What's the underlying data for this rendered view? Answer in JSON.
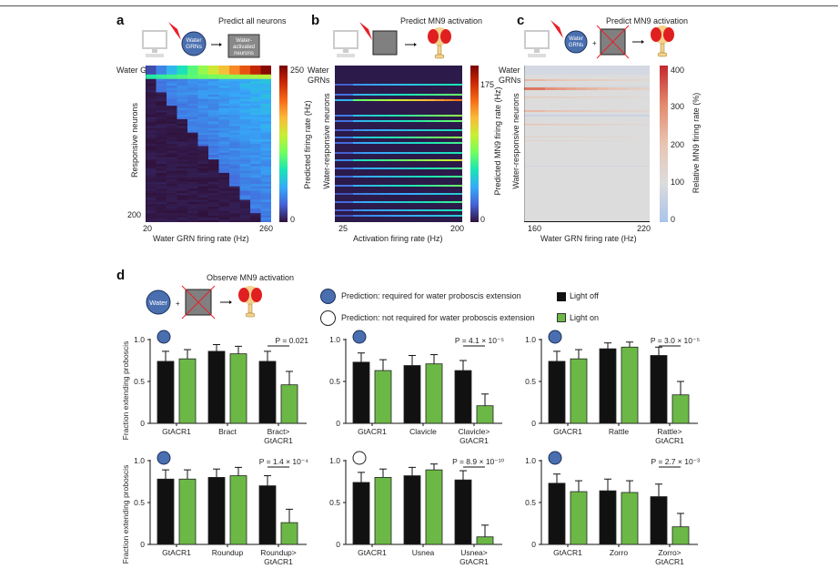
{
  "panels": {
    "a": {
      "letter": "a",
      "schematic_title": "Predict all neurons",
      "circle_label_1": "Water",
      "circle_label_2": "GRNs",
      "box_label_1": "Water-",
      "box_label_2": "activated",
      "box_label_3": "neurons"
    },
    "b": {
      "letter": "b",
      "schematic_title": "Predict MN9 activation"
    },
    "c": {
      "letter": "c",
      "schematic_title": "Predict MN9 activation",
      "circle_label_1": "Water",
      "circle_label_2": "GRNs",
      "plus": "+"
    },
    "d": {
      "letter": "d",
      "schematic_title": "Observe MN9 activation",
      "circle_label": "Water",
      "plus": "+",
      "legend": {
        "required": "Prediction: required for water proboscis extension",
        "not_required": "Prediction: not required for water proboscis extension",
        "light_off": "Light off",
        "light_on": "Light on"
      }
    }
  },
  "colors": {
    "prediction_blue": "#4a6fb0",
    "light_off": "#111111",
    "light_on": "#6cb846",
    "laser_red": "#e8202a",
    "fly_red": "#e02020",
    "fly_body": "#f2d28c"
  },
  "chart_data": [
    {
      "id": "a",
      "type": "heatmap",
      "title": "",
      "xlabel": "Water GRN firing rate (Hz)",
      "ylabel": "Responsive neurons",
      "row_group_label": "Water GRNs",
      "x_ticks": [
        "20",
        "260"
      ],
      "y_ticks": [
        "200"
      ],
      "xlim": [
        20,
        260
      ],
      "colorbar": {
        "label": "Predicted firing rate (Hz)",
        "ticks": [
          "0",
          "250"
        ],
        "range": [
          0,
          250
        ],
        "colormap": "turbo"
      }
    },
    {
      "id": "b",
      "type": "heatmap",
      "xlabel": "Activation firing rate (Hz)",
      "ylabel": "Water-responsive neurons",
      "row_group_label": "Water GRNs",
      "x_ticks": [
        "25",
        "200"
      ],
      "xlim": [
        25,
        200
      ],
      "colorbar": {
        "label": "Predicted MN9 firing rate (Hz)",
        "ticks": [
          "0",
          "175"
        ],
        "range": [
          0,
          175
        ],
        "colormap": "turbo"
      }
    },
    {
      "id": "c",
      "type": "heatmap",
      "xlabel": "Water GRN firing rate (Hz)",
      "ylabel": "Water-responsive neurons",
      "row_group_label": "Water GRNs",
      "x_ticks": [
        "160",
        "220"
      ],
      "xlim": [
        160,
        220
      ],
      "colorbar": {
        "label": "Relative MN9 firing rate (%)",
        "ticks": [
          "0",
          "100",
          "200",
          "300",
          "400"
        ],
        "range": [
          0,
          400
        ],
        "colormap": "coolwarm"
      }
    },
    {
      "id": "d1",
      "type": "bar",
      "ylabel": "Fraction extending proboscis",
      "ylim": [
        0,
        1
      ],
      "y_ticks": [
        "0",
        "0.5",
        "1.0"
      ],
      "prediction": "required",
      "categories": [
        "GtACR1",
        "Bract",
        "Bract>\nGtACR1"
      ],
      "series": [
        {
          "name": "Light off",
          "values": [
            0.74,
            0.86,
            0.74
          ],
          "errors": [
            0.12,
            0.08,
            0.12
          ]
        },
        {
          "name": "Light on",
          "values": [
            0.77,
            0.83,
            0.46
          ],
          "errors": [
            0.11,
            0.09,
            0.16
          ]
        }
      ],
      "pvalue": "P = 0.021"
    },
    {
      "id": "d2",
      "type": "bar",
      "ylim": [
        0,
        1
      ],
      "y_ticks": [
        "0",
        "0.5",
        "1.0"
      ],
      "prediction": "required",
      "categories": [
        "GtACR1",
        "Clavicle",
        "Clavicle>\nGtACR1"
      ],
      "series": [
        {
          "name": "Light off",
          "values": [
            0.73,
            0.69,
            0.63
          ],
          "errors": [
            0.11,
            0.12,
            0.12
          ]
        },
        {
          "name": "Light on",
          "values": [
            0.63,
            0.71,
            0.21
          ],
          "errors": [
            0.13,
            0.11,
            0.14
          ]
        }
      ],
      "pvalue": "P = 4.1 × 10⁻⁵"
    },
    {
      "id": "d3",
      "type": "bar",
      "ylim": [
        0,
        1
      ],
      "y_ticks": [
        "0",
        "0.5",
        "1.0"
      ],
      "prediction": "required",
      "categories": [
        "GtACR1",
        "Rattle",
        "Rattle>\nGtACR1"
      ],
      "series": [
        {
          "name": "Light off",
          "values": [
            0.74,
            0.89,
            0.81
          ],
          "errors": [
            0.12,
            0.07,
            0.1
          ]
        },
        {
          "name": "Light on",
          "values": [
            0.77,
            0.91,
            0.34
          ],
          "errors": [
            0.11,
            0.06,
            0.16
          ]
        }
      ],
      "pvalue": "P = 3.0 × 10⁻⁵"
    },
    {
      "id": "d4",
      "type": "bar",
      "ylabel": "Fraction extending proboscis",
      "ylim": [
        0,
        1
      ],
      "y_ticks": [
        "0",
        "0.5",
        "1.0"
      ],
      "prediction": "required",
      "categories": [
        "GtACR1",
        "Roundup",
        "Roundup>\nGtACR1"
      ],
      "series": [
        {
          "name": "Light off",
          "values": [
            0.78,
            0.8,
            0.7
          ],
          "errors": [
            0.11,
            0.1,
            0.12
          ]
        },
        {
          "name": "Light on",
          "values": [
            0.78,
            0.82,
            0.26
          ],
          "errors": [
            0.11,
            0.1,
            0.16
          ]
        }
      ],
      "pvalue": "P = 1.4 × 10⁻⁴"
    },
    {
      "id": "d5",
      "type": "bar",
      "ylim": [
        0,
        1
      ],
      "y_ticks": [
        "0",
        "0.5",
        "1.0"
      ],
      "prediction": "not_required",
      "categories": [
        "GtACR1",
        "Usnea",
        "Usnea>\nGtACR1"
      ],
      "series": [
        {
          "name": "Light off",
          "values": [
            0.74,
            0.82,
            0.77
          ],
          "errors": [
            0.12,
            0.1,
            0.11
          ]
        },
        {
          "name": "Light on",
          "values": [
            0.8,
            0.89,
            0.09
          ],
          "errors": [
            0.1,
            0.07,
            0.14
          ]
        }
      ],
      "pvalue": "P = 8.9 × 10⁻¹⁰"
    },
    {
      "id": "d6",
      "type": "bar",
      "ylim": [
        0,
        1
      ],
      "y_ticks": [
        "0",
        "0.5",
        "1.0"
      ],
      "prediction": "required",
      "categories": [
        "GtACR1",
        "Zorro",
        "Zorro>\nGtACR1"
      ],
      "series": [
        {
          "name": "Light off",
          "values": [
            0.73,
            0.64,
            0.57
          ],
          "errors": [
            0.11,
            0.14,
            0.15
          ]
        },
        {
          "name": "Light on",
          "values": [
            0.63,
            0.62,
            0.21
          ],
          "errors": [
            0.13,
            0.14,
            0.16
          ]
        }
      ],
      "pvalue": "P = 2.7 × 10⁻³"
    }
  ]
}
